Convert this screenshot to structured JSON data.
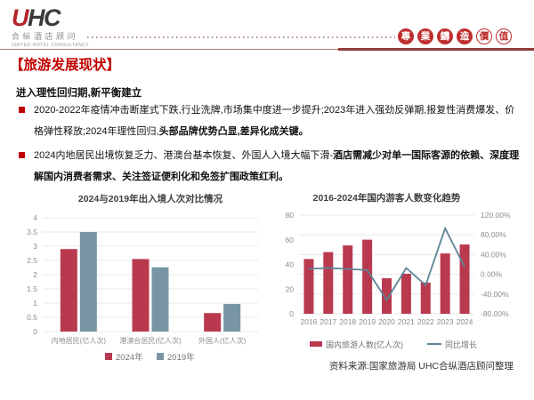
{
  "header": {
    "logo": {
      "acronym_accent": "U",
      "acronym_rest": "HC",
      "cn": "合纵酒店顾问",
      "en": "UNITED-HOTEL CONSULTANCY"
    },
    "seals": [
      {
        "char": "專",
        "style": "filled"
      },
      {
        "char": "業",
        "style": "filled"
      },
      {
        "char": "鑄",
        "style": "filled"
      },
      {
        "char": "造",
        "style": "filled"
      },
      {
        "char": "價",
        "style": "outline"
      },
      {
        "char": "值",
        "style": "outline"
      }
    ]
  },
  "title": "【旅游发展现状】",
  "subtitle": "进入理性回归期,新平衡建立",
  "bullets": [
    {
      "segments": [
        {
          "text": "2020-2022年疫情冲击断崖式下跌,行业洗牌,市场集中度进一步提升;2023年进入强劲反弹期,报复性消费爆发、价格弹性释放;2024年理性回归,",
          "bold": false
        },
        {
          "text": "头部品牌优势凸显,差异化成关键。",
          "bold": true
        }
      ]
    },
    {
      "segments": [
        {
          "text": "2024内地居民出境恢复乏力、港澳台基本恢复、外国人入境大幅下滑-",
          "bold": false
        },
        {
          "text": "酒店需减少对单一国际客源的依赖、深度理解国内消费者需求、关注签证便利化和免签扩围政策红利。",
          "bold": true
        }
      ]
    }
  ],
  "source": "资料来源:国家旅游局  UHC合纵酒店顾问整理",
  "colors": {
    "accent_red": "#c00000",
    "bar_red": "#b9394f",
    "bar_blue": "#7795a4",
    "line": "#5e8495",
    "seal_red": "#bf2f2f",
    "grid": "#e8e8e8",
    "axis_text": "#8c8c8c",
    "legend_text": "#737373",
    "chart_title": "#404040"
  },
  "chart_data": [
    {
      "type": "bar",
      "title": "2024与2019年出入境人次对比情况",
      "categories": [
        "内地居民(亿人次)",
        "港澳台居民(亿人次)",
        "外国人(亿人次)"
      ],
      "series": [
        {
          "name": "2024年",
          "values": [
            2.9,
            2.55,
            0.65
          ]
        },
        {
          "name": "2019年",
          "values": [
            3.5,
            2.26,
            0.97
          ]
        }
      ],
      "ylim": [
        0,
        4
      ],
      "ytick": 0.5,
      "grid": true,
      "legend_position": "bottom"
    },
    {
      "type": "combo",
      "title": "2016-2024年国内游客人数变化趋势",
      "categories": [
        "2016",
        "2017",
        "2018",
        "2019",
        "2020",
        "2021",
        "2022",
        "2023",
        "2024"
      ],
      "series": [
        {
          "name": "国内旅游人数(亿人次)",
          "type": "bar",
          "values": [
            44.4,
            50.0,
            55.4,
            60.1,
            28.8,
            32.5,
            25.3,
            48.9,
            56.2
          ]
        },
        {
          "name": "同比增长",
          "type": "line",
          "values": [
            11.0,
            12.8,
            10.8,
            8.4,
            -52.1,
            12.8,
            -22.1,
            93.3,
            14.8
          ]
        }
      ],
      "left_axis": {
        "min": 0,
        "max": 80,
        "tick": 20
      },
      "right_axis": {
        "min": -80,
        "max": 120,
        "labels": [
          "120.00%",
          "80.00%",
          "40.00%",
          "0.00%",
          "-40.00%",
          "-80.00%"
        ]
      },
      "grid": true,
      "legend_position": "bottom"
    }
  ]
}
